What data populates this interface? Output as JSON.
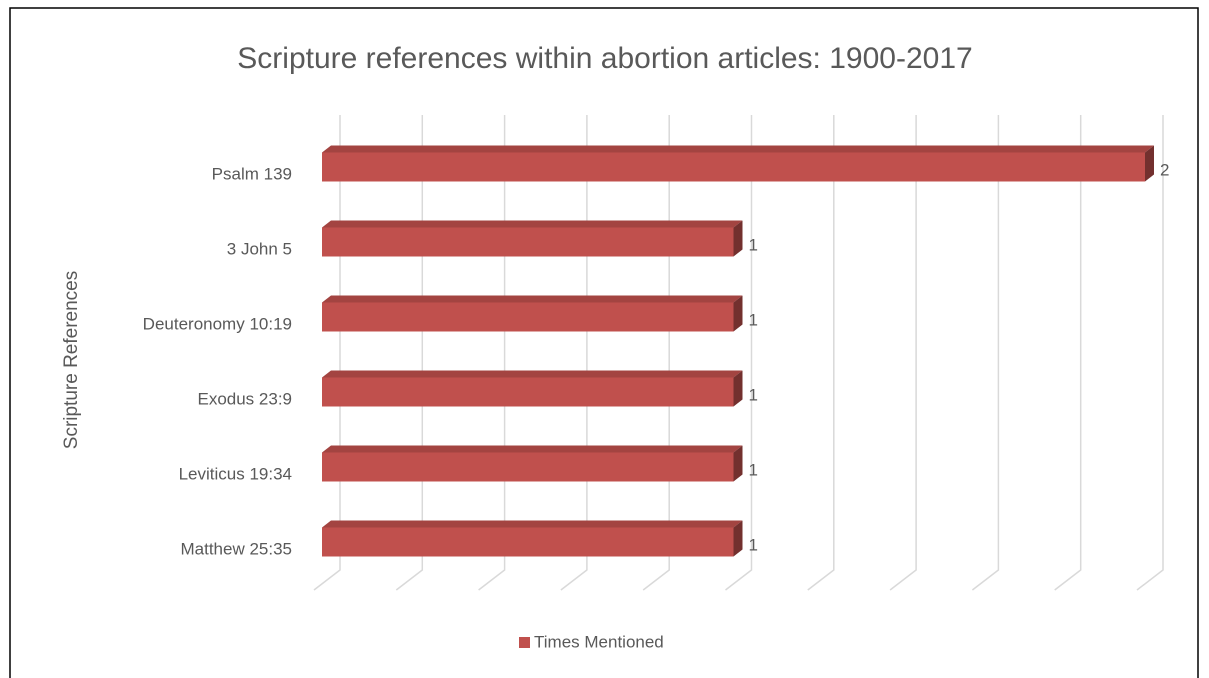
{
  "chart_data": {
    "type": "bar3d_horizontal",
    "title": "Scripture references within abortion articles: 1900-2017",
    "y_axis_label": "Scripture References",
    "categories": [
      "Psalm 139",
      "3 John 5",
      "Deuteronomy 10:19",
      "Exodus 23:9",
      "Leviticus 19:34",
      "Matthew 25:35"
    ],
    "series": [
      {
        "name": "Times Mentioned",
        "color": "#c0504d",
        "values": [
          2,
          1,
          1,
          1,
          1,
          1
        ]
      }
    ],
    "xlim": [
      0,
      2
    ],
    "xticks": [
      0,
      0.2,
      0.4,
      0.6,
      0.8,
      1,
      1.2,
      1.4,
      1.6,
      1.8,
      2
    ],
    "grid": true,
    "legend": "bottom"
  }
}
